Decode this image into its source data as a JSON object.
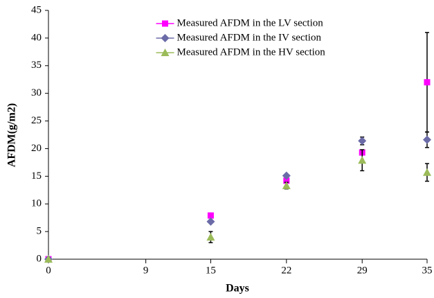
{
  "chart_data": {
    "type": "scatter",
    "x_label": "Days",
    "y_label": "AFDM(g/m2)",
    "xlim": [
      0,
      35
    ],
    "xticks": [
      0,
      9,
      15,
      22,
      29,
      35
    ],
    "ylim": [
      0,
      45
    ],
    "yticks": [
      0,
      5,
      10,
      15,
      20,
      25,
      30,
      35,
      40,
      45
    ],
    "legend": "top-center",
    "series": [
      {
        "name": "Measured AFDM in the LV section",
        "color": "#ff00ff",
        "marker": "square",
        "x": [
          0,
          15,
          22,
          29,
          35
        ],
        "values": [
          0,
          7.9,
          14.2,
          19.3,
          32
        ],
        "errors": [
          null,
          null,
          null,
          null,
          9
        ]
      },
      {
        "name": "Measured AFDM in the IV section",
        "color": "#6b6ba8",
        "marker": "diamond",
        "x": [
          0,
          15,
          22,
          29,
          35
        ],
        "values": [
          0,
          6.8,
          15.1,
          21.4,
          21.6
        ],
        "errors": [
          null,
          null,
          null,
          0.7,
          1.4
        ]
      },
      {
        "name": "Measured AFDM in the HV section",
        "color": "#9bbb59",
        "marker": "triangle",
        "x": [
          0,
          15,
          22,
          29,
          35
        ],
        "values": [
          0,
          4.0,
          13.3,
          17.9,
          15.7
        ],
        "errors": [
          null,
          1,
          0.6,
          1.9,
          1.6
        ]
      }
    ]
  }
}
